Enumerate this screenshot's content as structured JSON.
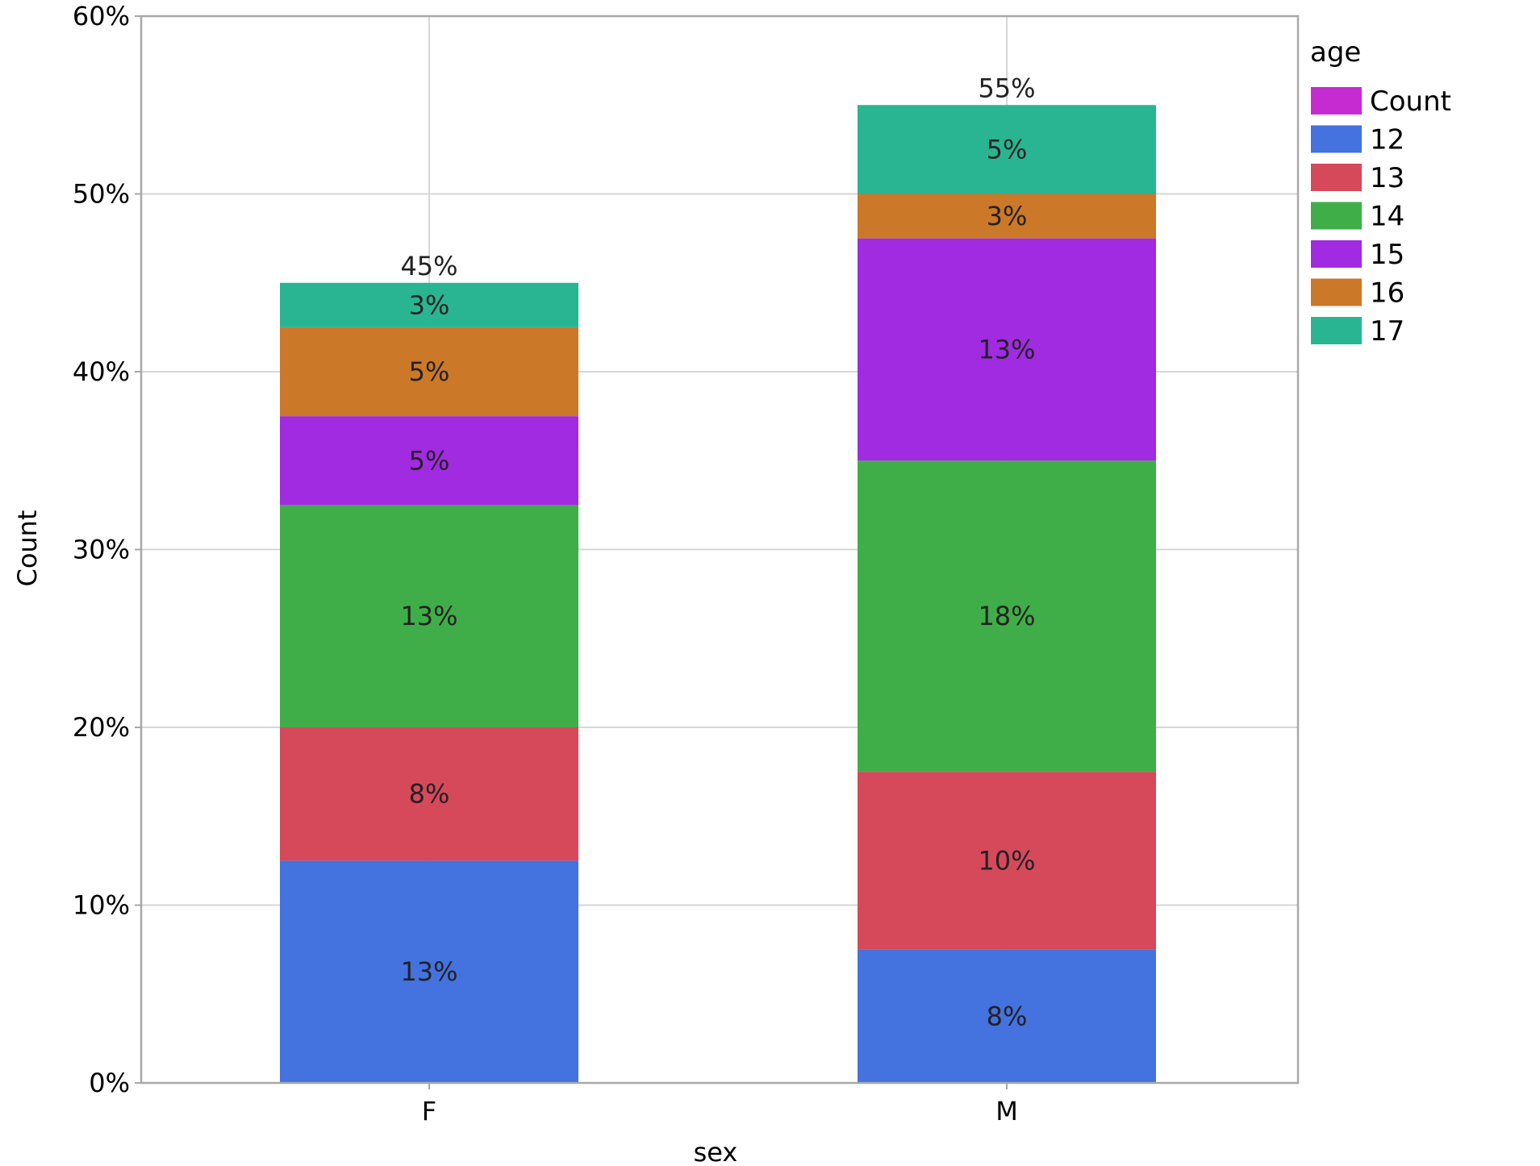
{
  "chart_data": {
    "type": "bar",
    "stacked": true,
    "categories": [
      "F",
      "M"
    ],
    "xlabel": "sex",
    "ylabel": "Count",
    "ylim": [
      0,
      60
    ],
    "yticks": [
      0,
      10,
      20,
      30,
      40,
      50,
      60
    ],
    "ytick_labels": [
      "0%",
      "10%",
      "20%",
      "30%",
      "40%",
      "50%",
      "60%"
    ],
    "grid": true,
    "legend": {
      "title": "age",
      "placement": "top-right",
      "entries": [
        {
          "label": "Count",
          "color": "#c52bd0"
        },
        {
          "label": "12",
          "color": "#4472de"
        },
        {
          "label": "13",
          "color": "#d5495b"
        },
        {
          "label": "14",
          "color": "#3fae48"
        },
        {
          "label": "15",
          "color": "#a12be0"
        },
        {
          "label": "16",
          "color": "#cc7829"
        },
        {
          "label": "17",
          "color": "#29b592"
        }
      ]
    },
    "series": [
      {
        "name": "12",
        "color": "#4472de",
        "values": [
          12.5,
          7.5
        ],
        "labels": [
          "13%",
          "8%"
        ]
      },
      {
        "name": "13",
        "color": "#d5495b",
        "values": [
          7.5,
          10
        ],
        "labels": [
          "8%",
          "10%"
        ]
      },
      {
        "name": "14",
        "color": "#3fae48",
        "values": [
          12.5,
          17.5
        ],
        "labels": [
          "13%",
          "18%"
        ]
      },
      {
        "name": "15",
        "color": "#a12be0",
        "values": [
          5,
          12.5
        ],
        "labels": [
          "5%",
          "13%"
        ]
      },
      {
        "name": "16",
        "color": "#cc7829",
        "values": [
          5,
          2.5
        ],
        "labels": [
          "5%",
          "3%"
        ]
      },
      {
        "name": "17",
        "color": "#29b592",
        "values": [
          2.5,
          5
        ],
        "labels": [
          "3%",
          "5%"
        ]
      }
    ],
    "totals": [
      45,
      55
    ],
    "total_labels": [
      "45%",
      "55%"
    ]
  }
}
